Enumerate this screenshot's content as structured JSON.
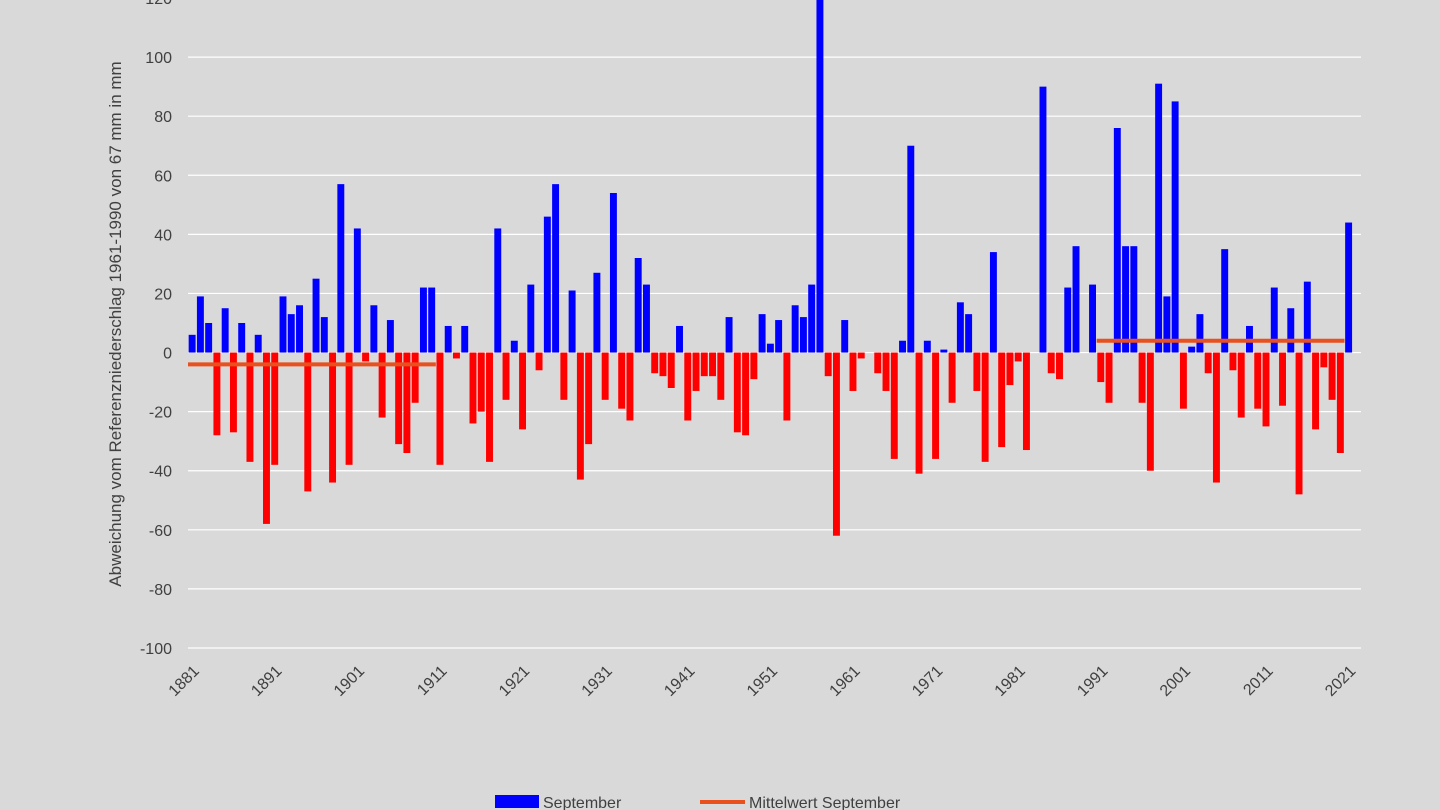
{
  "chart_data": {
    "type": "bar",
    "ylabel": "Abweichung vom Referenzniederschlag 1961-1990 von 67 mm  in mm",
    "xlabel": "",
    "ylim": [
      -100,
      120
    ],
    "yticks": [
      -100,
      -80,
      -60,
      -40,
      -20,
      0,
      20,
      40,
      60,
      80,
      100,
      120
    ],
    "xticks": [
      1881,
      1891,
      1901,
      1911,
      1921,
      1931,
      1941,
      1951,
      1961,
      1971,
      1981,
      1991,
      2001,
      2011,
      2021
    ],
    "grid": true,
    "legend_position": "bottom",
    "x_start": 1881,
    "x_end": 2022,
    "colors": {
      "positive": "#0000ff",
      "negative": "#ff0000",
      "mean": "#e8501e",
      "grid": "#ffffff",
      "background": "#d9d9d9"
    },
    "series": [
      {
        "name": "September",
        "values": [
          6,
          19,
          10,
          -28,
          15,
          -27,
          10,
          -37,
          6,
          -58,
          -38,
          19,
          13,
          16,
          -47,
          25,
          12,
          -44,
          57,
          -38,
          42,
          -3,
          16,
          -22,
          11,
          -31,
          -34,
          -17,
          22,
          22,
          -38,
          9,
          -2,
          9,
          -24,
          -20,
          -37,
          42,
          -16,
          4,
          -26,
          23,
          -6,
          46,
          57,
          -16,
          21,
          -43,
          -31,
          27,
          -16,
          54,
          -19,
          -23,
          32,
          23,
          -7,
          -8,
          -12,
          9,
          -23,
          -13,
          -8,
          -8,
          -16,
          12,
          -27,
          -28,
          -9,
          13,
          3,
          11,
          -23,
          16,
          12,
          23,
          120,
          -8,
          -62,
          11,
          -13,
          -2,
          0,
          -7,
          -13,
          -36,
          4,
          70,
          -41,
          4,
          -36,
          1,
          -17,
          17,
          13,
          -13,
          -37,
          34,
          -32,
          -11,
          -3,
          -33,
          0,
          90,
          -7,
          -9,
          22,
          36,
          0,
          23,
          -10,
          -17,
          76,
          36,
          36,
          -17,
          -40,
          91,
          19,
          85,
          -19,
          2,
          13,
          -7,
          -44,
          35,
          -6,
          -22,
          9,
          -19,
          -25,
          22,
          -18,
          15,
          -48,
          24,
          -26,
          -5,
          -16,
          -34,
          44
        ]
      },
      {
        "name": "Mittelwert September",
        "segments": [
          {
            "from": 1881,
            "to": 1910,
            "value": -4
          },
          {
            "from": 1991,
            "to": 2020,
            "value": 4
          }
        ]
      }
    ]
  }
}
